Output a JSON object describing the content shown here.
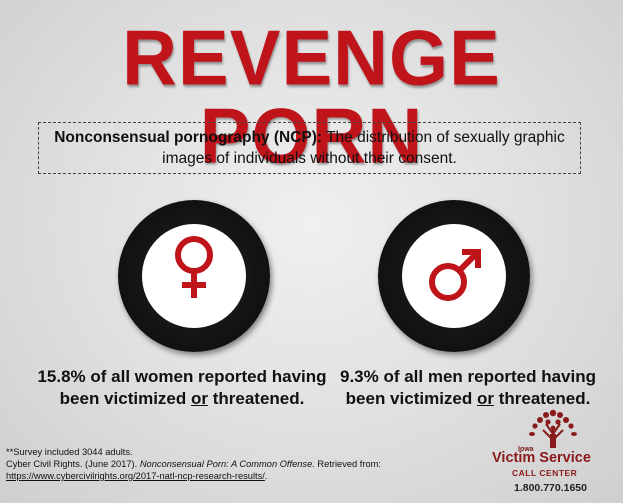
{
  "title": "REVENGE PORN",
  "definition": {
    "term": "Nonconsensual pornography (NCP):",
    "text": " The distribution of sexually graphic images of individuals without their consent."
  },
  "women": {
    "icon": "female-symbol",
    "stat_line1": "15.8% of all women reported having",
    "stat_prefix": "been victimized ",
    "stat_or": "or",
    "stat_suffix": " threatened."
  },
  "men": {
    "icon": "male-symbol",
    "stat_line1": "9.3% of all men reported having",
    "stat_prefix": "been victimized ",
    "stat_or": "or",
    "stat_suffix": " threatened."
  },
  "footnote": {
    "survey": "**Survey included 3044 adults.",
    "citation_start": "Cyber Civil Rights. (June 2017). ",
    "citation_title": "Nonconsensual Porn: A Common Offense.",
    "citation_end": " Retrieved from:",
    "url": "https://www.cybercivilrights.org/2017-natl-ncp-research-results/",
    "url_end": "."
  },
  "logo": {
    "state": "Iowa",
    "name": "Victim Service",
    "subtitle": "CALL CENTER",
    "phone": "1.800.770.1650"
  },
  "colors": {
    "accent": "#c0141b",
    "logo": "#8b1a1a"
  }
}
